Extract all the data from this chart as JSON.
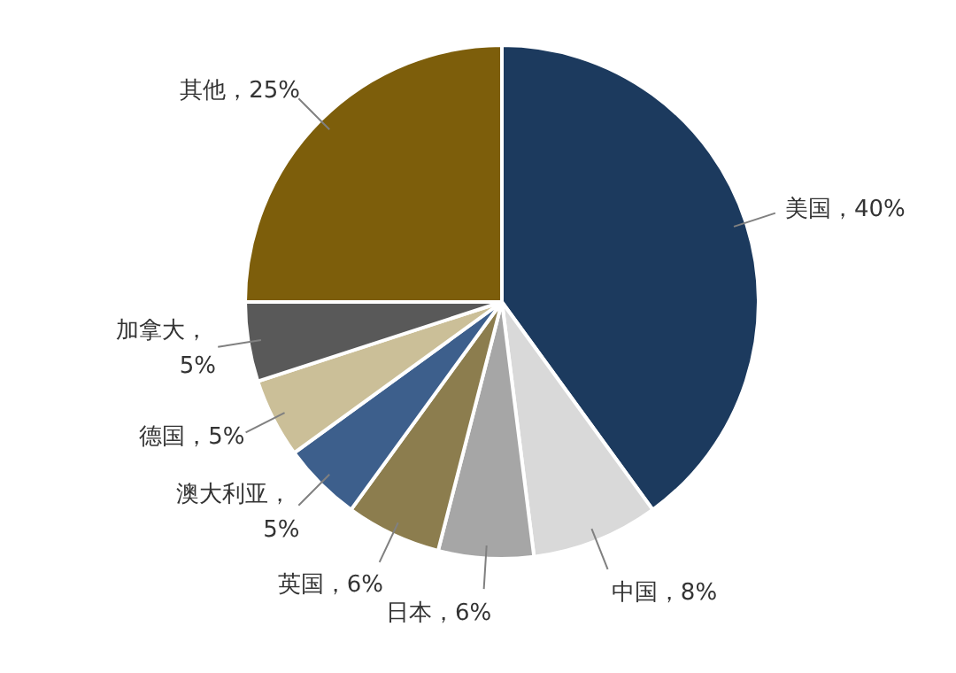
{
  "chart_data": {
    "type": "pie",
    "categories": [
      "美国",
      "中国",
      "日本",
      "英国",
      "澳大利亚",
      "德国",
      "加拿大",
      "其他"
    ],
    "values": [
      40,
      8,
      6,
      6,
      5,
      5,
      5,
      25
    ],
    "colors": [
      "#1c3a5e",
      "#d9d9d9",
      "#a6a6a6",
      "#8c7d4e",
      "#3d5f8c",
      "#cbbf98",
      "#595959",
      "#7d5e0b"
    ],
    "value_labels": [
      "，40%",
      "，8%",
      "，6%",
      "，6%",
      "，\n5%",
      "，5%",
      "，\n5%",
      "，25%"
    ]
  }
}
